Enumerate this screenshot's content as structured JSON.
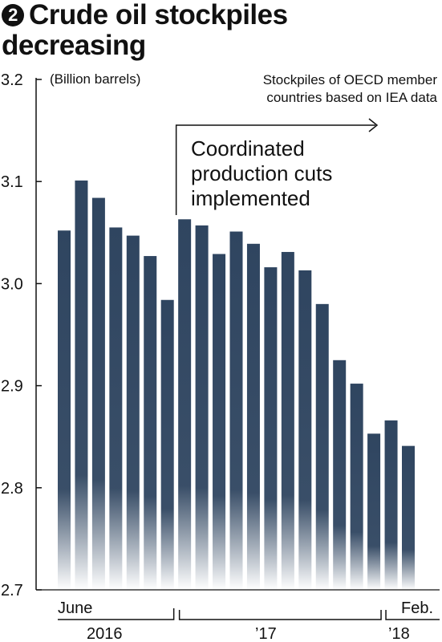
{
  "title": {
    "number_glyph": "2",
    "line1": "Crude oil stockpiles",
    "line2": "decreasing"
  },
  "chart_data": {
    "type": "bar",
    "unit_label": "(Billion barrels)",
    "source_note_line1": "Stockpiles of OECD member",
    "source_note_line2": "countries based on IEA data",
    "annotation_lines": [
      "Coordinated",
      "production cuts",
      "implemented"
    ],
    "ylim": [
      2.7,
      3.2
    ],
    "y_ticks": [
      "3.2",
      "3.1",
      "3.0",
      "2.9",
      "2.8",
      "2.7"
    ],
    "y_tick_values": [
      3.2,
      3.1,
      3.0,
      2.9,
      2.8,
      2.7
    ],
    "values": [
      3.052,
      3.101,
      3.084,
      3.055,
      3.047,
      3.027,
      2.984,
      3.063,
      3.057,
      3.029,
      3.051,
      3.039,
      3.016,
      3.031,
      3.013,
      2.98,
      2.925,
      2.902,
      2.853,
      2.866,
      2.841
    ],
    "x_labels": {
      "first_month": "June",
      "last_month": "Feb.",
      "years": [
        "2016",
        "’17",
        "’18"
      ]
    },
    "bar_color_top": "#2f4560",
    "bar_color_bottom": "#ffffff",
    "grid": false
  }
}
